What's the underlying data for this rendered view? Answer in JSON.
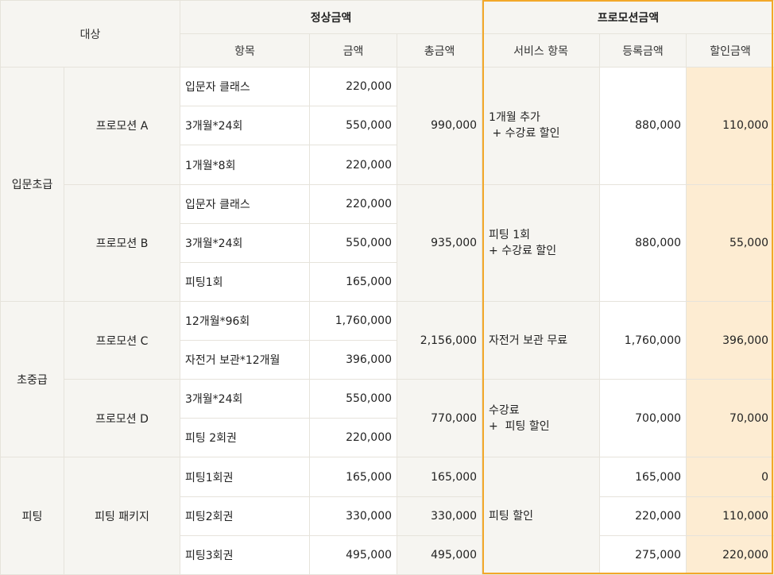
{
  "header": {
    "target": "대상",
    "regular_group": "정상금액",
    "promo_group": "프로모션금액",
    "col_item": "항목",
    "col_amount": "금액",
    "col_total": "총금액",
    "col_service": "서비스 항목",
    "col_registered": "등록금액",
    "col_discount": "할인금액"
  },
  "categories": {
    "beginner": "입문초급",
    "intermediate": "초중급",
    "fitting": "피팅"
  },
  "promo_a": {
    "name": "프로모션 A",
    "items": [
      {
        "label": "입문자 클래스",
        "amount": "220,000"
      },
      {
        "label": "3개월*24회",
        "amount": "550,000"
      },
      {
        "label": "1개월*8회",
        "amount": "220,000"
      }
    ],
    "total": "990,000",
    "service": "1개월 추가\n + 수강료 할인",
    "registered": "880,000",
    "discount": "110,000"
  },
  "promo_b": {
    "name": "프로모션 B",
    "items": [
      {
        "label": "입문자 클래스",
        "amount": "220,000"
      },
      {
        "label": "3개월*24회",
        "amount": "550,000"
      },
      {
        "label": "피팅1회",
        "amount": "165,000"
      }
    ],
    "total": "935,000",
    "service": "피팅 1회\n+ 수강료 할인",
    "registered": "880,000",
    "discount": "55,000"
  },
  "promo_c": {
    "name": "프로모션 C",
    "items": [
      {
        "label": "12개월*96회",
        "amount": "1,760,000"
      },
      {
        "label": "자전거 보관*12개월",
        "amount": "396,000"
      }
    ],
    "total": "2,156,000",
    "service": "자전거 보관 무료",
    "registered": "1,760,000",
    "discount": "396,000"
  },
  "promo_d": {
    "name": "프로모션 D",
    "items": [
      {
        "label": "3개월*24회",
        "amount": "550,000"
      },
      {
        "label": "피팅 2회권",
        "amount": "220,000"
      }
    ],
    "total": "770,000",
    "service": "수강료\n+  피팅 할인",
    "registered": "700,000",
    "discount": "70,000"
  },
  "fitting_package": {
    "name": "피팅 패키지",
    "service": "피팅 할인",
    "rows": [
      {
        "label": "피팅1회권",
        "amount": "165,000",
        "total": "165,000",
        "registered": "165,000",
        "discount": "0"
      },
      {
        "label": "피팅2회권",
        "amount": "330,000",
        "total": "330,000",
        "registered": "220,000",
        "discount": "110,000"
      },
      {
        "label": "피팅3회권",
        "amount": "495,000",
        "total": "495,000",
        "registered": "275,000",
        "discount": "220,000"
      }
    ]
  },
  "colors": {
    "header_bg": "#f6f5f1",
    "discount_bg": "#fdecd2",
    "promo_border": "#f2a82a",
    "grid_line": "#e6e3db"
  }
}
